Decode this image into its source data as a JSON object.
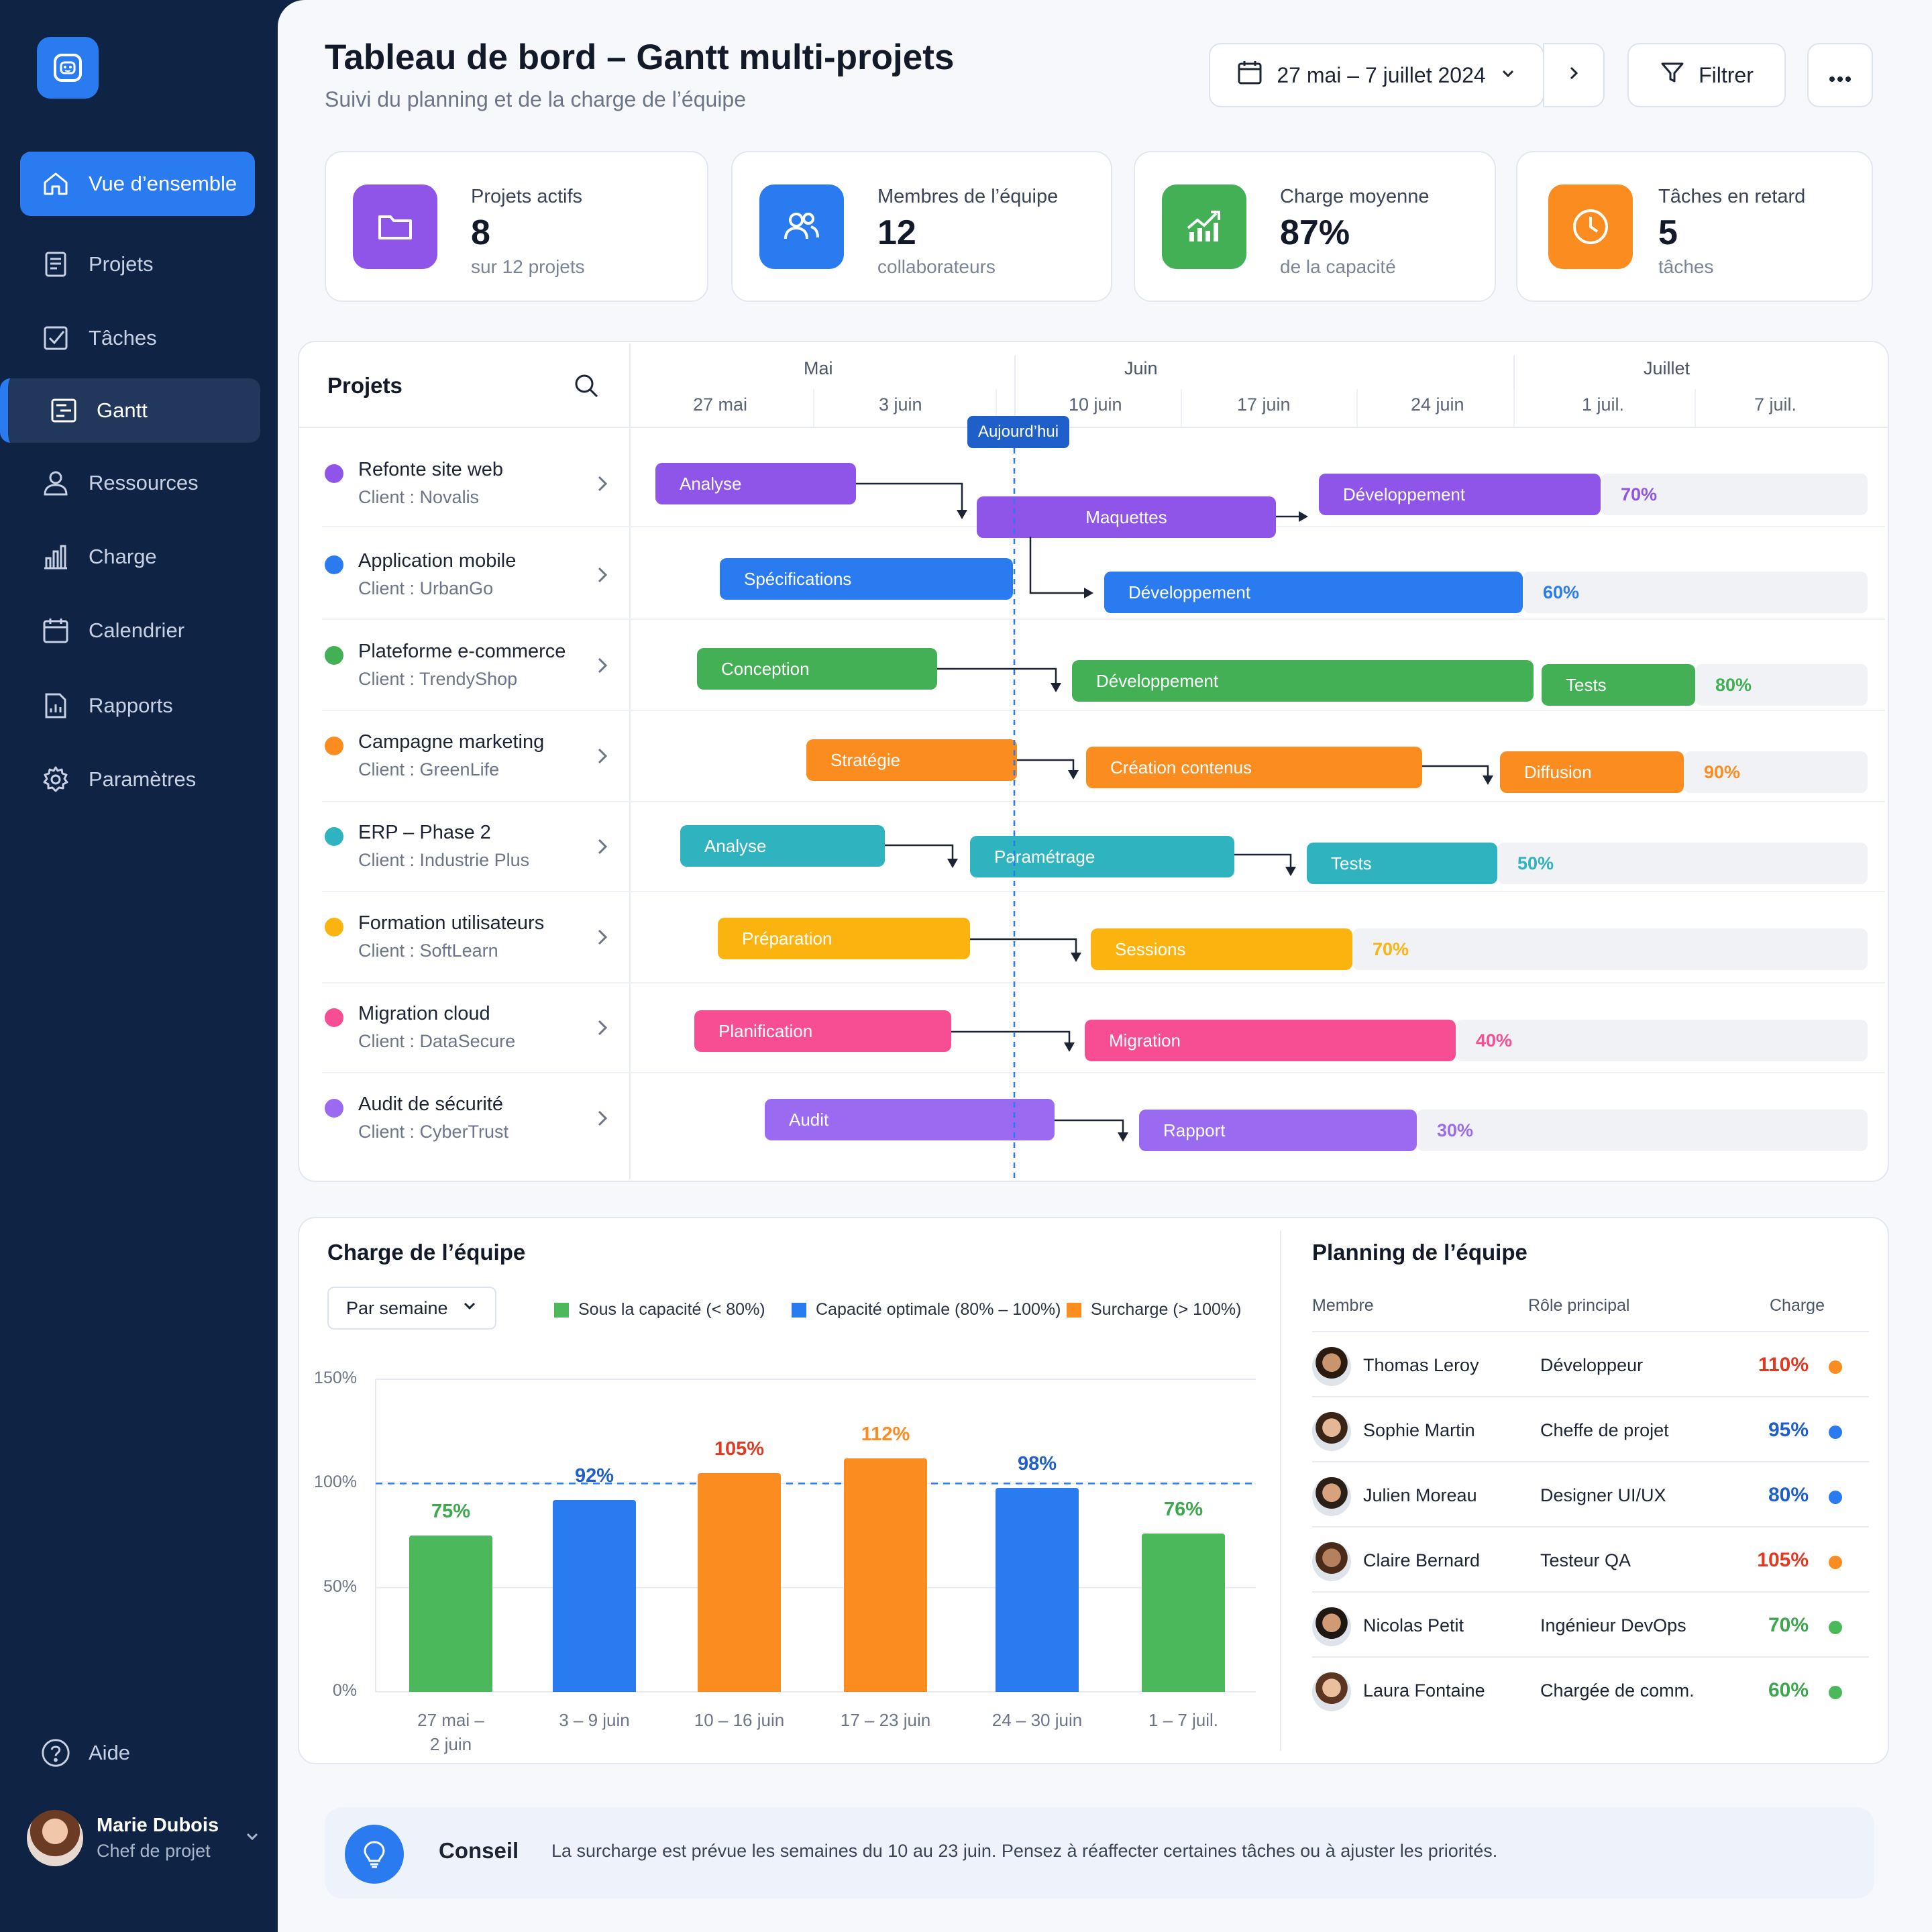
{
  "sidebar": {
    "items": [
      {
        "label": "Vue d’ensemble",
        "icon": "home-icon"
      },
      {
        "label": "Projets",
        "icon": "document-icon"
      },
      {
        "label": "Tâches",
        "icon": "checkbox-icon"
      },
      {
        "label": "Gantt",
        "icon": "gantt-icon"
      },
      {
        "label": "Ressources",
        "icon": "user-icon"
      },
      {
        "label": "Charge",
        "icon": "bar-chart-icon"
      },
      {
        "label": "Calendrier",
        "icon": "calendar-icon"
      },
      {
        "label": "Rapports",
        "icon": "report-icon"
      },
      {
        "label": "Paramètres",
        "icon": "gear-icon"
      }
    ],
    "help": "Aide",
    "user": {
      "name": "Marie Dubois",
      "role": "Chef de projet"
    }
  },
  "header": {
    "title": "Tableau de bord – Gantt multi-projets",
    "subtitle": "Suivi du planning et de la charge de l’équipe",
    "date_range": "27 mai – 7 juillet 2024",
    "filter": "Filtrer"
  },
  "kpis": [
    {
      "label": "Projets actifs",
      "value": "8",
      "sub": "sur 12 projets",
      "color": "#8e55e8"
    },
    {
      "label": "Membres de l’équipe",
      "value": "12",
      "sub": "collaborateurs",
      "color": "#2b7bf0"
    },
    {
      "label": "Charge moyenne",
      "value": "87%",
      "sub": "de la capacité",
      "color": "#43b055"
    },
    {
      "label": "Tâches en retard",
      "value": "5",
      "sub": "tâches",
      "color": "#fb8c1f"
    }
  ],
  "gantt": {
    "header": "Projets",
    "months": [
      "Mai",
      "Juin",
      "Juillet"
    ],
    "weeks": [
      "27 mai",
      "3 juin",
      "10 juin",
      "17 juin",
      "24 juin",
      "1 juil.",
      "7 juil."
    ],
    "today": "Aujourd’hui",
    "projects": [
      {
        "name": "Refonte site web",
        "client": "Client : Novalis",
        "color": "#8e55e8",
        "tasks": [
          "Analyse",
          "Maquettes",
          "Développement"
        ],
        "progress": "70%"
      },
      {
        "name": "Application mobile",
        "client": "Client : UrbanGo",
        "color": "#2b7bf0",
        "tasks": [
          "Spécifications",
          "Développement"
        ],
        "progress": "60%"
      },
      {
        "name": "Plateforme e-commerce",
        "client": "Client : TrendyShop",
        "color": "#43b055",
        "tasks": [
          "Conception",
          "Développement",
          "Tests"
        ],
        "progress": "80%"
      },
      {
        "name": "Campagne marketing",
        "client": "Client : GreenLife",
        "color": "#fb8c1f",
        "tasks": [
          "Stratégie",
          "Création contenus",
          "Diffusion"
        ],
        "progress": "90%"
      },
      {
        "name": "ERP – Phase 2",
        "client": "Client : Industrie Plus",
        "color": "#2eb3bf",
        "tasks": [
          "Analyse",
          "Paramétrage",
          "Tests"
        ],
        "progress": "50%"
      },
      {
        "name": "Formation utilisateurs",
        "client": "Client : SoftLearn",
        "color": "#fbb40f",
        "tasks": [
          "Préparation",
          "Sessions"
        ],
        "progress": "70%"
      },
      {
        "name": "Migration cloud",
        "client": "Client : DataSecure",
        "color": "#f74d92",
        "tasks": [
          "Planification",
          "Migration"
        ],
        "progress": "40%"
      },
      {
        "name": "Audit de sécurité",
        "client": "Client : CyberTrust",
        "color": "#9a6bf0",
        "tasks": [
          "Audit",
          "Rapport"
        ],
        "progress": "30%"
      }
    ]
  },
  "workload": {
    "title": "Charge de l’équipe",
    "period": "Par semaine",
    "legend": [
      {
        "label": "Sous la capacité (< 80%)",
        "color": "#4cb85c"
      },
      {
        "label": "Capacité optimale (80% – 100%)",
        "color": "#2b7bf0"
      },
      {
        "label": "Surcharge (> 100%)",
        "color": "#fb8c1f"
      }
    ],
    "chart_data": {
      "type": "bar",
      "categories": [
        "27 mai – 2 juin",
        "3 – 9 juin",
        "10 – 16 juin",
        "17 – 23 juin",
        "24 – 30 juin",
        "1 – 7 juil."
      ],
      "values": [
        75,
        92,
        105,
        112,
        98,
        76
      ],
      "value_labels": [
        "75%",
        "92%",
        "105%",
        "112%",
        "98%",
        "76%"
      ],
      "colors": [
        "#4cb85c",
        "#2b7bf0",
        "#fb8c1f",
        "#fb8c1f",
        "#2b7bf0",
        "#4cb85c"
      ],
      "label_colors": [
        "#3da64e",
        "#1f5fc9",
        "#e03a22",
        "#fb8c1f",
        "#1f5fc9",
        "#3da64e"
      ],
      "yticks": [
        "150%",
        "100%",
        "50%",
        "0%"
      ],
      "ylim": [
        0,
        150
      ],
      "reference_line": 100,
      "grid": true
    }
  },
  "team": {
    "title": "Planning de l’équipe",
    "columns": [
      "Membre",
      "Rôle principal",
      "Charge"
    ],
    "members": [
      {
        "name": "Thomas Leroy",
        "role": "Développeur",
        "load": "110%",
        "color": "#e03a22",
        "dot": "#fb8c1f"
      },
      {
        "name": "Sophie Martin",
        "role": "Cheffe de projet",
        "load": "95%",
        "color": "#1f5fc9",
        "dot": "#2b7bf0"
      },
      {
        "name": "Julien Moreau",
        "role": "Designer UI/UX",
        "load": "80%",
        "color": "#1f5fc9",
        "dot": "#2b7bf0"
      },
      {
        "name": "Claire Bernard",
        "role": "Testeur QA",
        "load": "105%",
        "color": "#e03a22",
        "dot": "#fb8c1f"
      },
      {
        "name": "Nicolas Petit",
        "role": "Ingénieur DevOps",
        "load": "70%",
        "color": "#3da64e",
        "dot": "#4cb85c"
      },
      {
        "name": "Laura Fontaine",
        "role": "Chargée de comm.",
        "load": "60%",
        "color": "#3da64e",
        "dot": "#4cb85c"
      }
    ]
  },
  "tip": {
    "title": "Conseil",
    "text": "La surcharge est prévue les semaines du 10 au 23 juin. Pensez à réaffecter certaines tâches ou à ajuster les priorités."
  }
}
